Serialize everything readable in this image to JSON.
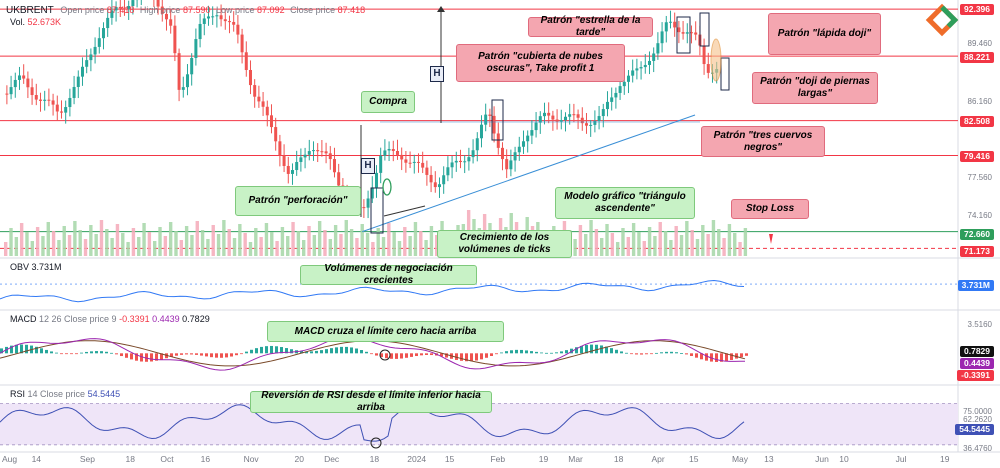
{
  "chart_data": [
    {
      "type": "candlestick",
      "symbol": "UKBRENT",
      "header": {
        "open_label": "Open price",
        "open": "87.418",
        "high_label": "High price",
        "high": "87.590",
        "low_label": "Low price",
        "low": "87.092",
        "close_label": "Close price",
        "close": "87.418",
        "volume_label": "Vol.",
        "volume": "52.673K"
      },
      "ylim": [
        70.5,
        93.2
      ],
      "y_ticks": [
        "89.460",
        "86.160",
        "77.560",
        "74.160"
      ],
      "x_labels": [
        "Aug",
        "14",
        "Sep",
        "18",
        "Oct",
        "16",
        "Nov",
        "20",
        "Dec",
        "18",
        "2024",
        "15",
        "Feb",
        "19",
        "Mar",
        "18",
        "Apr",
        "15",
        "May",
        "13",
        "Jun",
        "10",
        "Jul",
        "19"
      ],
      "x_label_dates": [
        "2023-08-01",
        "2023-08-14",
        "2023-09-01",
        "2023-09-18",
        "2023-10-01",
        "2023-10-16",
        "2023-11-01",
        "2023-11-20",
        "2023-12-01",
        "2023-12-18",
        "2024-01-01",
        "2024-01-15",
        "2024-02-01",
        "2024-02-19",
        "2024-03-01",
        "2024-03-18",
        "2024-04-01",
        "2024-04-15",
        "2024-05-01",
        "2024-05-13",
        "2024-06-01",
        "2024-06-10",
        "2024-07-01",
        "2024-07-19"
      ],
      "x_range": [
        "2023-07-31",
        "2024-07-22"
      ],
      "price_levels": [
        {
          "label": "92.396",
          "value": 92.396,
          "color": "#f23645"
        },
        {
          "label": "88.221",
          "value": 88.221,
          "color": "#f23645"
        },
        {
          "label": "82.508",
          "value": 82.508,
          "color": "#f23645"
        },
        {
          "label": "79.416",
          "value": 79.416,
          "color": "#f23645"
        },
        {
          "label": "72.660",
          "value": 72.66,
          "color": "#2e9e5b"
        },
        {
          "label": "71.173",
          "value": 71.173,
          "color": "#f23645"
        }
      ],
      "close_series_approx": [
        {
          "date": "2023-08-01",
          "value": 84.9
        },
        {
          "date": "2023-08-08",
          "value": 86.2
        },
        {
          "date": "2023-08-15",
          "value": 84.4
        },
        {
          "date": "2023-08-22",
          "value": 83.2
        },
        {
          "date": "2023-08-29",
          "value": 85.9
        },
        {
          "date": "2023-09-05",
          "value": 89.8
        },
        {
          "date": "2023-09-12",
          "value": 92.3
        },
        {
          "date": "2023-09-19",
          "value": 93.4
        },
        {
          "date": "2023-09-26",
          "value": 94.1
        },
        {
          "date": "2023-10-03",
          "value": 90.3
        },
        {
          "date": "2023-10-06",
          "value": 84.6
        },
        {
          "date": "2023-10-13",
          "value": 90.6
        },
        {
          "date": "2023-10-20",
          "value": 92.3
        },
        {
          "date": "2023-10-27",
          "value": 90.3
        },
        {
          "date": "2023-11-03",
          "value": 84.8
        },
        {
          "date": "2023-11-10",
          "value": 81.4
        },
        {
          "date": "2023-11-16",
          "value": 77.4
        },
        {
          "date": "2023-11-24",
          "value": 80.5
        },
        {
          "date": "2023-12-01",
          "value": 78.8
        },
        {
          "date": "2023-12-07",
          "value": 75.6
        },
        {
          "date": "2023-12-13",
          "value": 74.2
        },
        {
          "date": "2023-12-20",
          "value": 79.5
        },
        {
          "date": "2023-12-27",
          "value": 79.6
        },
        {
          "date": "2024-01-03",
          "value": 78.3
        },
        {
          "date": "2024-01-10",
          "value": 76.9
        },
        {
          "date": "2024-01-17",
          "value": 78.8
        },
        {
          "date": "2024-01-24",
          "value": 80.0
        },
        {
          "date": "2024-01-29",
          "value": 83.5
        },
        {
          "date": "2024-02-05",
          "value": 77.8
        },
        {
          "date": "2024-02-12",
          "value": 81.5
        },
        {
          "date": "2024-02-19",
          "value": 82.8
        },
        {
          "date": "2024-02-26",
          "value": 82.9
        },
        {
          "date": "2024-03-04",
          "value": 82.4
        },
        {
          "date": "2024-03-11",
          "value": 82.7
        },
        {
          "date": "2024-03-18",
          "value": 86.0
        },
        {
          "date": "2024-03-25",
          "value": 86.8
        },
        {
          "date": "2024-04-01",
          "value": 89.3
        },
        {
          "date": "2024-04-05",
          "value": 91.1
        },
        {
          "date": "2024-04-12",
          "value": 90.5
        },
        {
          "date": "2024-04-16",
          "value": 89.5
        },
        {
          "date": "2024-04-19",
          "value": 87.0
        },
        {
          "date": "2024-04-24",
          "value": 87.4
        }
      ],
      "lines": [
        {
          "name": "triangle-support",
          "from": {
            "date": "2023-12-13",
            "value": 72.66
          },
          "to": {
            "date": "2024-04-15",
            "value": 83.0
          }
        }
      ]
    },
    {
      "type": "line",
      "indicator": "OBV",
      "label": "OBV",
      "value_label": "3.731M",
      "ylim": [
        -1.5,
        9.0
      ],
      "value": 3.731,
      "y_ticks": [
        "3.5160"
      ],
      "color": "#3179f5"
    },
    {
      "type": "macd",
      "label": "MACD",
      "params": "12 26 Close price 9",
      "values": [
        "-0.3391",
        "0.4439",
        "0.7829"
      ],
      "ylim": [
        -2.5,
        3.6
      ],
      "y_ticks": [
        "3.5160",
        "0.7829",
        "0.4439",
        "-0.3391"
      ],
      "colors": {
        "macd": "#9c27b0",
        "signal": "#7a4a2a",
        "hist_up": "#26a69a",
        "hist_down": "#ef5350"
      }
    },
    {
      "type": "line",
      "indicator": "RSI",
      "label": "RSI",
      "params": "14 Close price",
      "value": "54.5445",
      "ylim": [
        25.0,
        85.0
      ],
      "levels": [
        30,
        70
      ],
      "y_ticks": [
        "75.0000",
        "62.2620",
        "54.5445",
        "36.4760"
      ],
      "color": "#3f51b5"
    }
  ],
  "annotations": {
    "estrella": "Patrón \"estrella de la tarde\"",
    "lapida": "Patrón \"lápida doji\"",
    "cubierta": "Patrón \"cubierta de nubes oscuras\", Take profit 1",
    "doji_piernas": "Patrón \"doji de piernas largas\"",
    "tres_cuervos": "Patrón \"tres cuervos negros\"",
    "perforacion": "Patrón \"perforación\"",
    "stop_loss": "Stop Loss",
    "compra": "Compra",
    "crecimiento": "Crecimiento de los volúmenes de ticks",
    "triangulo": "Modelo gráfico \"triángulo ascendente\"",
    "obv_note": "Volúmenes de negociación crecientes",
    "macd_note": "MACD cruza el límite cero hacia arriba",
    "rsi_note": "Reversión de RSI desde el límite inferior hacia arriba",
    "h": "H"
  },
  "colors": {
    "up": "#26a69a",
    "down": "#ef5350",
    "level": "#f23645",
    "volume_up": "#a5d6a7",
    "volume_down": "#f5a9b8"
  }
}
